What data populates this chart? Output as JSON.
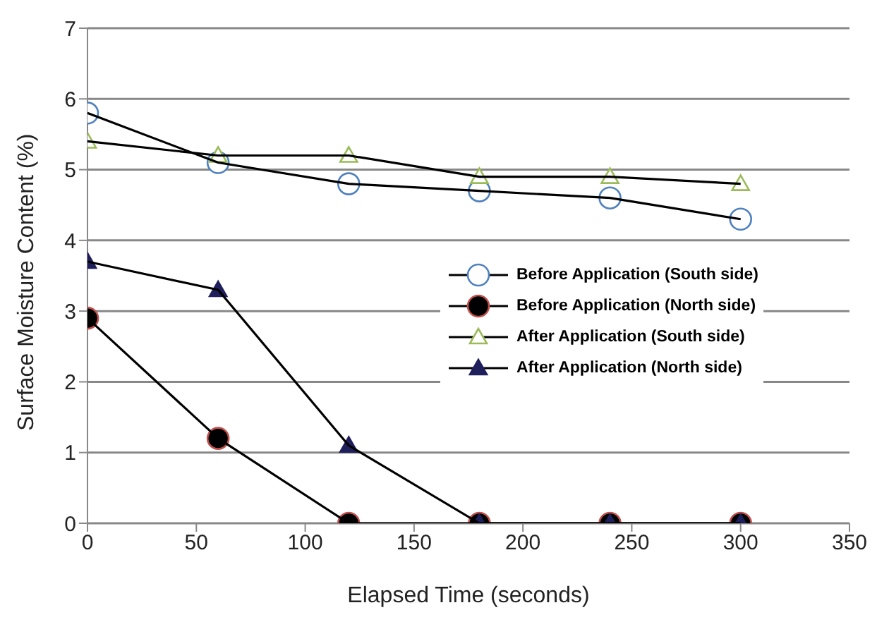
{
  "chart_data": {
    "type": "line",
    "xlabel": "Elapsed Time (seconds)",
    "ylabel": "Surface Moisture Content (%)",
    "x": [
      0,
      60,
      120,
      180,
      240,
      300
    ],
    "xlim": [
      0,
      350
    ],
    "xticks": [
      0,
      50,
      100,
      150,
      200,
      250,
      300,
      350
    ],
    "ylim": [
      0,
      7
    ],
    "yticks": [
      0,
      1,
      2,
      3,
      4,
      5,
      6,
      7
    ],
    "grid": "y",
    "legend": "right",
    "series": [
      {
        "name": "Before Application (South side)",
        "color": "#4f81bd",
        "marker": "circle",
        "values": [
          5.8,
          5.1,
          4.8,
          4.7,
          4.6,
          4.3
        ]
      },
      {
        "name": "Before Application (North side)",
        "color": "#000000",
        "marker": "circle",
        "values": [
          2.9,
          1.2,
          0,
          0,
          0,
          0
        ]
      },
      {
        "name": "After Application (South side)",
        "color": "#9bbb59",
        "marker": "triangle",
        "values": [
          5.4,
          5.2,
          5.2,
          4.9,
          4.9,
          4.8
        ]
      },
      {
        "name": "After Application (North side)",
        "color": "#1f1f5c",
        "marker": "triangle",
        "values": [
          3.7,
          3.3,
          1.1,
          0,
          0,
          0
        ]
      }
    ]
  }
}
